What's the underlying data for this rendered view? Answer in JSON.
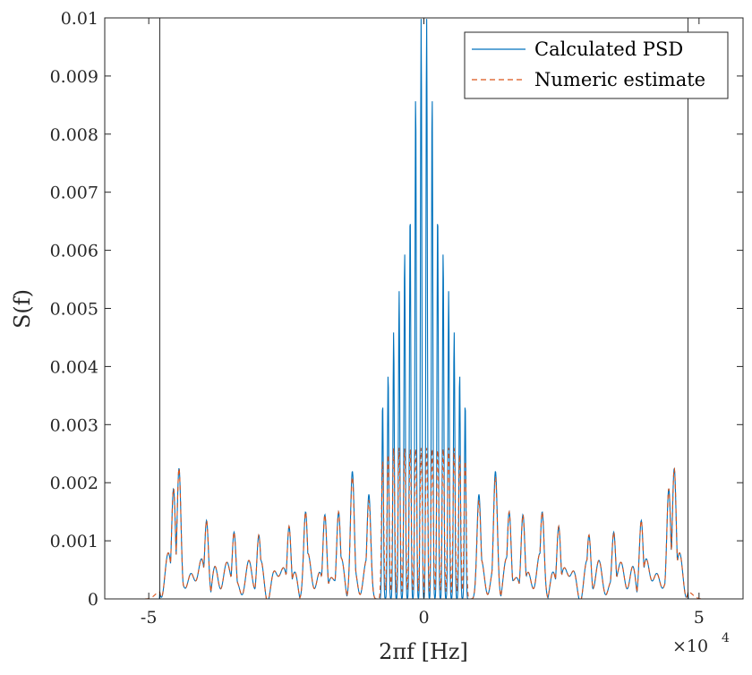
{
  "chart_data": {
    "type": "line",
    "title": "",
    "xlabel": "2πf [Hz]",
    "ylabel": "S(f)",
    "x_scale_note": "×10",
    "x_scale_exponent": "4",
    "xlim": [
      -5.8,
      5.8
    ],
    "ylim": [
      0,
      0.01
    ],
    "x_ticks": [
      -5,
      0,
      5
    ],
    "x_tick_labels": [
      "-5",
      "0",
      "5"
    ],
    "y_ticks": [
      0,
      0.001,
      0.002,
      0.003,
      0.004,
      0.005,
      0.006,
      0.007,
      0.008,
      0.009,
      0.01
    ],
    "y_tick_labels": [
      "0",
      "0.001",
      "0.002",
      "0.003",
      "0.004",
      "0.005",
      "0.006",
      "0.007",
      "0.008",
      "0.009",
      "0.01"
    ],
    "vertical_lines": [
      -4.8,
      4.8
    ],
    "grid": false,
    "legend_position": "top-right",
    "series": [
      {
        "name": "Calculated PSD",
        "color": "#0072BD",
        "style": "solid",
        "peak_x": [
          -4.45,
          -4.55,
          -3.95,
          -3.45,
          -3.0,
          -2.45,
          -2.15,
          -1.8,
          -1.55,
          -1.3,
          -1.0,
          -0.75,
          -0.65,
          -0.55,
          -0.45,
          -0.35,
          -0.25,
          -0.15,
          -0.05,
          0.05,
          0.15,
          0.25,
          0.35,
          0.45,
          0.55,
          0.65,
          0.75,
          1.0,
          1.3,
          1.55,
          1.8,
          2.15,
          2.45,
          3.0,
          3.45,
          3.95,
          4.45,
          4.55
        ],
        "peak_y": [
          0.00225,
          0.0019,
          0.00135,
          0.00115,
          0.0011,
          0.00125,
          0.0015,
          0.00145,
          0.0015,
          0.0022,
          0.0018,
          0.0034,
          0.0039,
          0.0046,
          0.0053,
          0.006,
          0.0067,
          0.0087,
          0.01,
          0.01,
          0.0087,
          0.0067,
          0.006,
          0.0053,
          0.0046,
          0.0039,
          0.0034,
          0.0018,
          0.0022,
          0.0015,
          0.00145,
          0.0015,
          0.00125,
          0.0011,
          0.00115,
          0.00135,
          0.0019,
          0.00225
        ]
      },
      {
        "name": "Numeric estimate",
        "color": "#D95319",
        "style": "dashed",
        "peak_x": [
          -4.45,
          -4.55,
          -3.95,
          -3.45,
          -3.0,
          -2.45,
          -2.15,
          -1.8,
          -1.55,
          -1.3,
          -1.0,
          -0.75,
          -0.65,
          -0.55,
          -0.45,
          -0.35,
          -0.25,
          -0.15,
          -0.05,
          0.05,
          0.15,
          0.25,
          0.35,
          0.45,
          0.55,
          0.65,
          0.75,
          1.0,
          1.3,
          1.55,
          1.8,
          2.15,
          2.45,
          3.0,
          3.45,
          3.95,
          4.45,
          4.55
        ],
        "peak_y": [
          0.00225,
          0.0019,
          0.00135,
          0.00115,
          0.0011,
          0.00125,
          0.0015,
          0.00145,
          0.0015,
          0.0021,
          0.0017,
          0.0024,
          0.0025,
          0.0026,
          0.0026,
          0.0026,
          0.0026,
          0.0026,
          0.0026,
          0.0026,
          0.0026,
          0.0026,
          0.0026,
          0.0026,
          0.0026,
          0.0025,
          0.0024,
          0.0017,
          0.0021,
          0.0015,
          0.00145,
          0.0015,
          0.00125,
          0.0011,
          0.00115,
          0.00135,
          0.0019,
          0.00225
        ]
      }
    ]
  },
  "colors": {
    "axis": "#262626",
    "vertical_line": "#000000"
  }
}
